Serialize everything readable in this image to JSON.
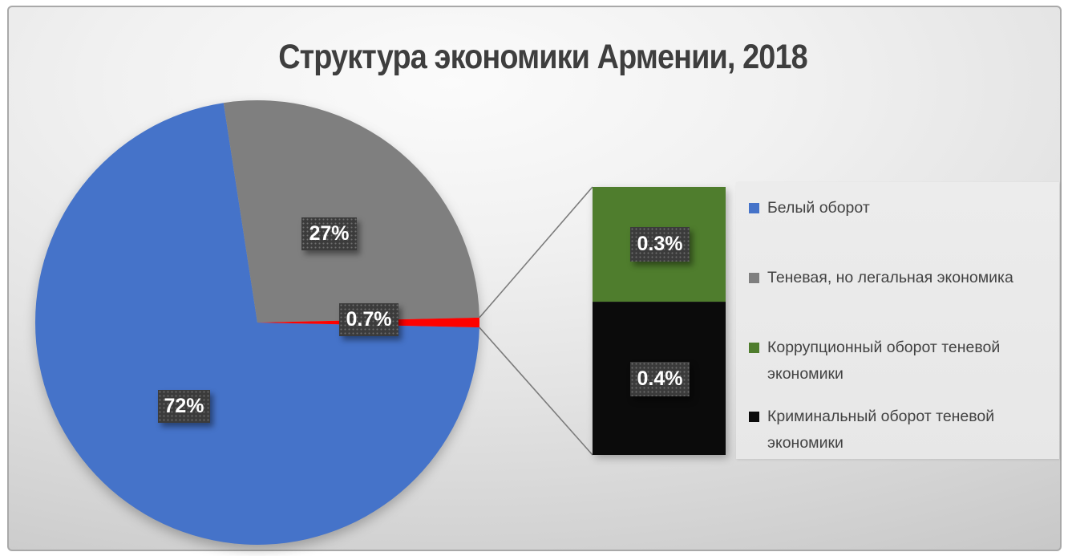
{
  "title": "Структура экономики Армении, 2018",
  "chart_data": {
    "type": "pie",
    "subtype": "bar-of-pie",
    "title": "Структура экономики Армении, 2018",
    "legend_position": "right",
    "grid": false,
    "pie_slices": [
      {
        "name": "Белый оборот",
        "value_pct": 72,
        "label": "72%",
        "color": "#4573C9"
      },
      {
        "name": "Теневая, но легальная экономика",
        "value_pct": 27,
        "label": "27%",
        "color": "#7F7F7F"
      },
      {
        "name": "",
        "value_pct": 0.7,
        "label": "0.7%",
        "color": "#FE0100",
        "expands_to_bar": true
      }
    ],
    "bar_segments": [
      {
        "name": "Коррупционный оборот теневой экономики",
        "value_pct": 0.3,
        "label": "0.3%",
        "color": "#4F7D2D"
      },
      {
        "name": "Криминальный оборот теневой экономики",
        "value_pct": 0.4,
        "label": "0.4%",
        "color": "#0B0B0B"
      }
    ],
    "legend": [
      {
        "label": "Белый оборот",
        "color": "#4573C9"
      },
      {
        "label": "Теневая, но легальная экономика",
        "color": "#7F7F7F"
      },
      {
        "label": "Коррупционный оборот теневой экономики",
        "color": "#4F7D2D"
      },
      {
        "label": "Криминальный оборот теневой экономики",
        "color": "#0B0B0B"
      }
    ],
    "colors": {
      "connector_line": "#7C7C7C",
      "data_label_box": "#3B3B3B",
      "data_label_text": "#FFFFFF",
      "title_text": "#3E3E3E",
      "legend_text": "#424242"
    }
  }
}
